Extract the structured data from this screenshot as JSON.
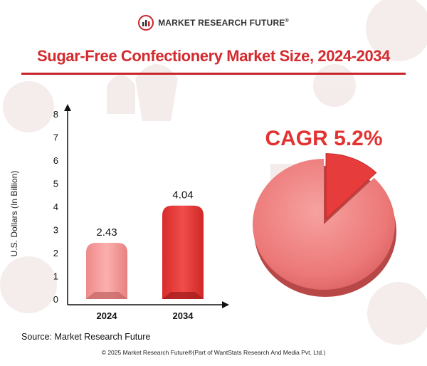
{
  "brand": {
    "name": "MARKET RESEARCH FUTURE",
    "reg": "®"
  },
  "title": "Sugar-Free Confectionery Market Size, 2024-2034",
  "cagr_label": "CAGR 5.2%",
  "source": "Source: Market Research Future",
  "copyright": "© 2025 Market Research Future®(Part of WantStats Research And Media Pvt. Ltd.)",
  "colors": {
    "accent": "#d42b2f",
    "bar_light": "#f59a9a",
    "bar_dark": "#e23a3a",
    "pie": "#ef7b7b"
  },
  "chart_data": [
    {
      "type": "bar",
      "categories": [
        "2024",
        "2034"
      ],
      "values": [
        2.43,
        4.04
      ],
      "data_labels": [
        "2.43",
        "4.04"
      ],
      "ylabel": "U.S. Dollars (In Billion)",
      "ylim": [
        0,
        8
      ],
      "yticks": [
        "0",
        "1",
        "2",
        "3",
        "4",
        "5",
        "6",
        "7",
        "8"
      ],
      "grid": false,
      "legend": "none"
    },
    {
      "type": "pie",
      "title": "CAGR 5.2%",
      "values": [
        94.8,
        5.2
      ],
      "legend": "none"
    }
  ]
}
